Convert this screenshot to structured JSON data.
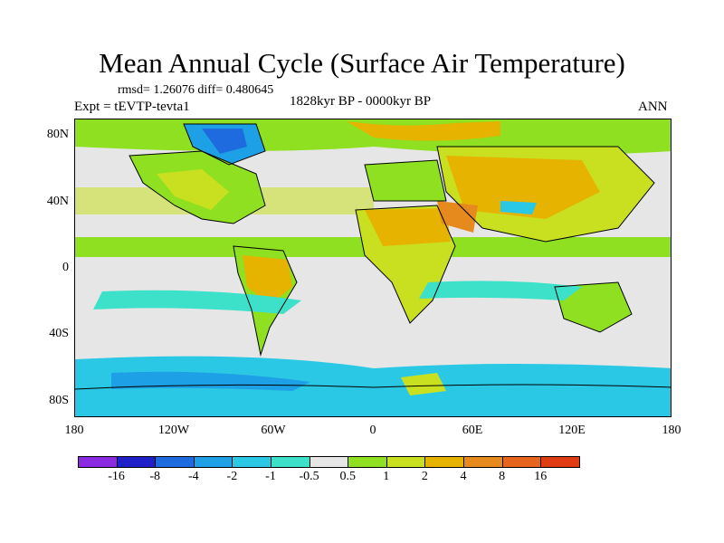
{
  "title": "Mean Annual Cycle (Surface Air Temperature)",
  "stats": "rmsd= 1.26076 diff= 0.480645",
  "experiment": "Expt = tEVTP-tevta1",
  "period": "1828kyr BP - 0000kyr BP",
  "season": "ANN",
  "y_labels": [
    "80N",
    "40N",
    "0",
    "40S",
    "80S"
  ],
  "x_labels": [
    "180",
    "120W",
    "60W",
    "0",
    "60E",
    "120E",
    "180"
  ],
  "colorbar": {
    "colors": [
      "#8a2be2",
      "#2020c8",
      "#1e6be0",
      "#1ea0e6",
      "#2bc8e6",
      "#3de0c8",
      "#e6e6e6",
      "#8ee020",
      "#c8e020",
      "#e6b400",
      "#e68a1e",
      "#e6641e",
      "#e03c14"
    ],
    "labels": [
      "-16",
      "-8",
      "-4",
      "-2",
      "-1",
      "-0.5",
      "0.5",
      "1",
      "2",
      "4",
      "8",
      "16"
    ]
  },
  "palette": {
    "neutral": "#e6e6e6",
    "green": "#8ee020",
    "yellowgreen": "#c8e020",
    "orange": "#e6b400",
    "darkorange": "#e68a1e",
    "cyan": "#2bc8e6",
    "aqua": "#3de0c8",
    "blue": "#1ea0e6",
    "deepblue": "#1e6be0"
  }
}
